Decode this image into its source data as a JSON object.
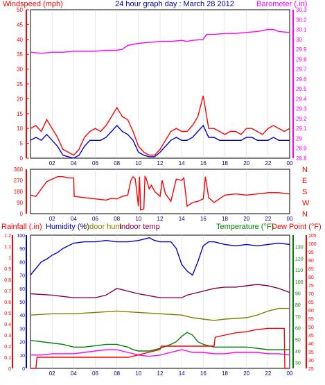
{
  "chart_data": [
    {
      "type": "line",
      "title": "24 hour graph day : March 28 2012",
      "left_axis_label": "Windspeed (mph)",
      "right_axis_label": "Barometer (.in)",
      "x_ticks": [
        "02",
        "04",
        "06",
        "08",
        "10",
        "12",
        "14",
        "16",
        "18",
        "20",
        "22",
        "00"
      ],
      "left_axis": {
        "ylim": [
          0,
          50
        ],
        "ticks": [
          "0",
          "5",
          "10",
          "15",
          "20",
          "25",
          "30",
          "35",
          "40",
          "45",
          "50"
        ],
        "color": "#ff0000"
      },
      "right_axis": {
        "ylim": [
          28.8,
          30.3
        ],
        "ticks": [
          "28.8",
          "28.9",
          "29",
          "29.1",
          "29.2",
          "29.3",
          "29.4",
          "29.5",
          "29.6",
          "29.7",
          "29.8",
          "29.9",
          "30",
          "30.1",
          "30.2",
          "30.3"
        ],
        "color": "#ff00ff"
      },
      "series": [
        {
          "name": "Barometer",
          "axis": "right",
          "color": "#ff00ff",
          "x": [
            0,
            1,
            2,
            3,
            4,
            5,
            6,
            7,
            8,
            8.5,
            9,
            10,
            11,
            12,
            13,
            14,
            14.5,
            15,
            16,
            16.3,
            17,
            18,
            19,
            20,
            21,
            22,
            22.5,
            23,
            24
          ],
          "y": [
            29.87,
            29.86,
            29.87,
            29.87,
            29.88,
            29.88,
            29.88,
            29.89,
            29.89,
            29.9,
            29.94,
            29.96,
            29.97,
            29.98,
            29.98,
            29.99,
            29.98,
            29.99,
            30.0,
            30.05,
            30.05,
            30.06,
            30.06,
            30.07,
            30.08,
            30.1,
            30.1,
            30.08,
            30.07
          ]
        },
        {
          "name": "Wind gust",
          "axis": "left",
          "color": "#ff0000",
          "x": [
            0,
            0.5,
            1,
            1.5,
            2,
            2.5,
            3,
            3.5,
            4,
            4.5,
            5,
            5.5,
            6,
            6.5,
            7,
            7.5,
            8,
            8.5,
            9,
            9.5,
            10,
            10.5,
            11,
            11.5,
            12,
            12.5,
            13,
            13.5,
            14,
            14.5,
            15,
            15.5,
            16,
            16.5,
            17,
            17.5,
            18,
            18.5,
            19,
            19.5,
            20,
            20.5,
            21,
            21.5,
            22,
            22.5,
            23,
            23.5,
            24
          ],
          "y": [
            10,
            11,
            9,
            13,
            10,
            7,
            3,
            2,
            1,
            3,
            7,
            9,
            10,
            9,
            11,
            14,
            17,
            14,
            13,
            9,
            4,
            2,
            1,
            1,
            3,
            6,
            9,
            10,
            9,
            9,
            11,
            14,
            21,
            10,
            10,
            9,
            8,
            9,
            9,
            8,
            10,
            10,
            9,
            8,
            10,
            11,
            10,
            9,
            10
          ]
        },
        {
          "name": "Wind speed",
          "axis": "left",
          "color": "#0000cc",
          "x": [
            0,
            0.5,
            1,
            1.5,
            2,
            2.5,
            3,
            3.5,
            4,
            4.5,
            5,
            5.5,
            6,
            6.5,
            7,
            7.5,
            8,
            8.5,
            9,
            9.5,
            10,
            10.5,
            11,
            11.5,
            12,
            12.5,
            13,
            13.5,
            14,
            14.5,
            15,
            15.5,
            16,
            16.5,
            17,
            17.5,
            18,
            18.5,
            19,
            19.5,
            20,
            20.5,
            21,
            21.5,
            22,
            22.5,
            23,
            23.5,
            24
          ],
          "y": [
            6,
            7,
            6,
            8,
            6,
            4,
            1,
            0.5,
            0,
            1,
            4,
            6,
            6,
            6,
            7,
            9,
            11,
            9,
            8,
            6,
            2,
            1,
            0.5,
            0.5,
            2,
            4,
            6,
            7,
            6,
            6,
            7,
            9,
            11,
            7,
            7,
            6,
            6,
            6,
            6,
            6,
            7,
            7,
            6,
            6,
            6,
            7,
            6,
            6,
            6
          ]
        }
      ]
    },
    {
      "type": "line",
      "title": "",
      "left_axis": {
        "ylim": [
          0,
          360
        ],
        "ticks": [
          "0",
          "90",
          "180",
          "270",
          "360"
        ],
        "color": "#ff0000"
      },
      "right_axis": {
        "labels": [
          "N",
          "W",
          "S",
          "E",
          "N"
        ],
        "color": "#ff0000"
      },
      "x_ticks": [
        "02",
        "04",
        "06",
        "08",
        "10",
        "12",
        "14",
        "16",
        "18",
        "20",
        "22",
        "00"
      ],
      "series": [
        {
          "name": "Wind direction",
          "axis": "left",
          "color": "#ff0000",
          "x": [
            0,
            0.5,
            1,
            1.5,
            2,
            2.5,
            3,
            3.5,
            4,
            4.05,
            5,
            6,
            7,
            7.5,
            8,
            8.5,
            9,
            9.3,
            9.5,
            9.7,
            10,
            10.1,
            10.2,
            10.5,
            10.6,
            10.7,
            11,
            11.2,
            11.5,
            12,
            12.2,
            12.5,
            13,
            13.5,
            14,
            14.2,
            14.5,
            15,
            15.5,
            16,
            16.2,
            16.5,
            17,
            17.5,
            18,
            19,
            20,
            21,
            22,
            23,
            24
          ],
          "y": [
            150,
            140,
            200,
            260,
            280,
            300,
            300,
            290,
            290,
            140,
            130,
            120,
            110,
            125,
            120,
            140,
            150,
            270,
            300,
            280,
            60,
            300,
            30,
            40,
            300,
            290,
            200,
            230,
            180,
            140,
            270,
            160,
            100,
            280,
            270,
            290,
            60,
            90,
            100,
            120,
            300,
            130,
            90,
            120,
            150,
            160,
            150,
            160,
            170,
            170,
            160
          ]
        }
      ]
    },
    {
      "type": "line",
      "title": "",
      "left_axis_label": "Rainfall (.in)",
      "humidity_label": "Humidity (%)",
      "indoor_hum_label": "Indoor hum",
      "indoor_temp_label": "Indoor temp",
      "temp_label": "Temperature (°F)",
      "dew_label": "Dew Point (°F)",
      "x_ticks": [
        "02",
        "04",
        "06",
        "08",
        "10",
        "12",
        "14",
        "16",
        "18",
        "20",
        "22",
        "00"
      ],
      "rain_axis": {
        "ylim": [
          0,
          1.2
        ],
        "ticks": [
          "0",
          "0.1",
          "0.2",
          "0.3",
          "0.4",
          "0.5",
          "0.6",
          "0.7",
          "0.8",
          "0.9",
          "1",
          "1.1",
          "1.2"
        ],
        "color": "#ff0000"
      },
      "humidity_axis": {
        "ylim": [
          0,
          100
        ],
        "ticks": [
          "0",
          "10",
          "20",
          "30",
          "40",
          "50",
          "60",
          "70",
          "80",
          "90",
          "100"
        ],
        "color": "#0000cc"
      },
      "temp_axis": {
        "ylim": [
          25,
          140
        ],
        "ticks": [
          "30",
          "40",
          "50",
          "60",
          "70",
          "80",
          "90",
          "100",
          "110",
          "120",
          "130"
        ],
        "color": "#008000"
      },
      "dew_axis": {
        "ylim": [
          25,
          105
        ],
        "ticks": [
          "25",
          "30",
          "35",
          "40",
          "45",
          "50",
          "55",
          "60",
          "65",
          "70",
          "75",
          "80",
          "85",
          "90",
          "95",
          "100",
          "105"
        ],
        "color": "#ff0000"
      },
      "series": [
        {
          "name": "Humidity",
          "axis": "humidity",
          "color": "#0000cc",
          "x": [
            0,
            0.5,
            1,
            1.5,
            2,
            2.5,
            3,
            3.5,
            4,
            5,
            6,
            7,
            8,
            9,
            10,
            11,
            11.5,
            12,
            13,
            13.5,
            14,
            14.5,
            15,
            15.5,
            16,
            16.5,
            17,
            18,
            19,
            20,
            21,
            22,
            23,
            24
          ],
          "y": [
            70,
            75,
            80,
            82,
            85,
            87,
            90,
            92,
            94,
            95,
            95,
            96,
            95,
            95,
            96,
            98,
            96,
            95,
            95,
            90,
            78,
            73,
            70,
            80,
            92,
            95,
            95,
            93,
            92,
            93,
            92,
            93,
            94,
            93
          ]
        },
        {
          "name": "Indoor hum",
          "axis": "humidity",
          "color": "#8b0040",
          "x": [
            0,
            2,
            4,
            6,
            7,
            8,
            10,
            12,
            13,
            14,
            14.5,
            15,
            17,
            18,
            19,
            20,
            21,
            22,
            23,
            24
          ],
          "y": [
            56,
            55,
            53,
            53,
            55,
            60,
            56,
            53,
            53,
            53,
            55,
            56,
            60,
            61,
            61,
            62,
            63,
            62,
            60,
            57
          ]
        },
        {
          "name": "Indoor temp",
          "axis": "humidity",
          "color": "#808000",
          "x": [
            0,
            2,
            4,
            6,
            8,
            10,
            12,
            14,
            15,
            16,
            17,
            18,
            20,
            21,
            22,
            23,
            24
          ],
          "y": [
            40,
            41,
            41,
            42,
            43,
            42,
            41,
            40,
            38,
            37,
            36,
            37,
            38,
            40,
            43,
            45,
            45
          ]
        },
        {
          "name": "Temperature",
          "axis": "humidity",
          "color": "#008000",
          "x": [
            0,
            1,
            2,
            3,
            4,
            5,
            6,
            7,
            8,
            8.5,
            9,
            9.5,
            10,
            11,
            12,
            13,
            13.5,
            14,
            14.5,
            15,
            15.5,
            16,
            17,
            18,
            19,
            20,
            21,
            22,
            23,
            24
          ],
          "y": [
            21,
            20,
            19,
            18,
            16,
            16,
            17,
            18,
            18,
            17,
            16,
            14,
            13,
            13,
            15,
            18,
            20,
            24,
            27,
            25,
            20,
            18,
            16,
            16,
            16,
            16,
            15,
            14,
            14,
            14
          ]
        },
        {
          "name": "Dew Point",
          "axis": "humidity",
          "color": "#ff00ff",
          "x": [
            0,
            1,
            2,
            3,
            4,
            5,
            6,
            7,
            8,
            9,
            10,
            11,
            12,
            13,
            14,
            14.5,
            15,
            16,
            17,
            18,
            19,
            20,
            21,
            22,
            23,
            24
          ],
          "y": [
            10,
            10,
            11,
            11,
            11,
            12,
            13,
            14,
            14,
            12,
            10,
            9,
            10,
            12,
            14,
            13,
            12,
            12,
            11,
            11,
            12,
            12,
            12,
            11,
            11,
            10
          ]
        },
        {
          "name": "Rainfall",
          "axis": "rain",
          "color": "#ff0000",
          "x": [
            0,
            0.5,
            0.6,
            3,
            3.1,
            6,
            6.1,
            9,
            9.1,
            12,
            12.1,
            14.5,
            14.6,
            17,
            17.1,
            18,
            19,
            20,
            21,
            22,
            23.5,
            23.55,
            24
          ],
          "y": [
            0,
            0,
            0.1,
            0.1,
            0.1,
            0.1,
            0.1,
            0.1,
            0.1,
            0.17,
            0.2,
            0.2,
            0.2,
            0.2,
            0.28,
            0.3,
            0.32,
            0.33,
            0.35,
            0.36,
            0.36,
            0,
            0
          ]
        }
      ]
    }
  ]
}
